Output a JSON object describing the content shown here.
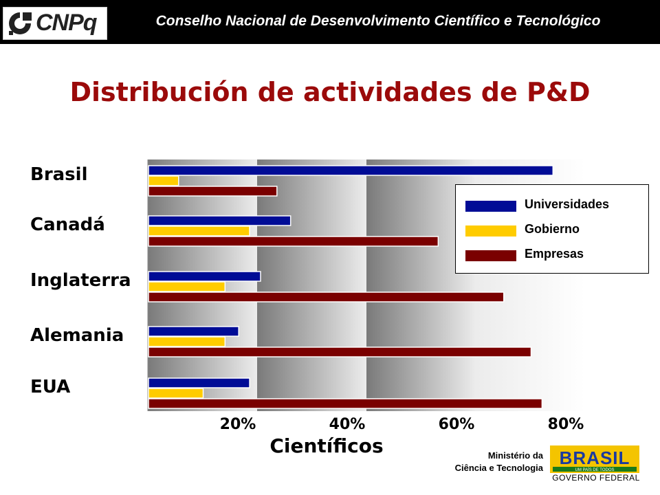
{
  "header": {
    "logo_text": "CNPq",
    "org_name": "Conselho Nacional de Desenvolvimento Científico e Tecnológico"
  },
  "footer": {
    "ministry_line1": "Ministério da",
    "ministry_line2": "Ciência e Tecnologia",
    "brand_text": "BRASIL",
    "brand_tagline": "UM PAÍS DE TODOS",
    "gov_text": "GOVERNO FEDERAL"
  },
  "colors": {
    "title": "#9b0a0a",
    "universidades": "#000c96",
    "gobierno": "#ffcc00",
    "empresas": "#7a0000"
  },
  "chart_data": {
    "type": "bar",
    "orientation": "horizontal",
    "title": "Distribución de actividades de P&D",
    "xlabel": "Científicos",
    "ylabel": "",
    "categories": [
      "Brasil",
      "Canadá",
      "Inglaterra",
      "Alemania",
      "EUA"
    ],
    "series": [
      {
        "name": "Universidades",
        "color": "#000c96",
        "values": [
          74,
          26,
          20.5,
          16.5,
          18.5
        ]
      },
      {
        "name": "Gobierno",
        "color": "#ffcc00",
        "values": [
          5.5,
          18.5,
          14,
          14,
          10
        ]
      },
      {
        "name": "Empresas",
        "color": "#7a0000",
        "values": [
          23.5,
          53,
          65,
          70,
          72
        ]
      }
    ],
    "xlim": [
      0,
      80
    ],
    "xticks": [
      20,
      40,
      60,
      80
    ],
    "xtick_labels": [
      "20%",
      "40%",
      "60%",
      "80%"
    ],
    "legend_position": "right",
    "grid": false
  }
}
